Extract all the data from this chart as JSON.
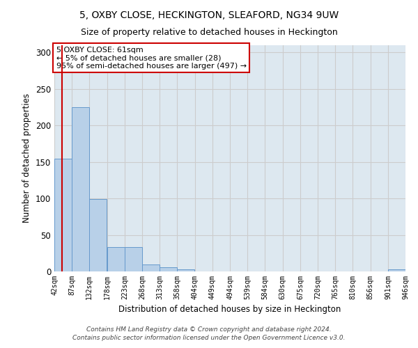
{
  "title_line1": "5, OXBY CLOSE, HECKINGTON, SLEAFORD, NG34 9UW",
  "title_line2": "Size of property relative to detached houses in Heckington",
  "xlabel": "Distribution of detached houses by size in Heckington",
  "ylabel": "Number of detached properties",
  "bin_edges": [
    42,
    87,
    132,
    178,
    223,
    268,
    313,
    358,
    404,
    449,
    494,
    539,
    584,
    630,
    675,
    720,
    765,
    810,
    856,
    901,
    946
  ],
  "bar_heights": [
    155,
    225,
    99,
    33,
    33,
    10,
    6,
    3,
    0,
    0,
    0,
    0,
    0,
    0,
    0,
    0,
    0,
    0,
    0,
    3
  ],
  "bar_color": "#b8d0e8",
  "bar_edge_color": "#6699cc",
  "vline_x": 61,
  "vline_color": "#cc0000",
  "grid_color": "#cccccc",
  "background_color": "#dde8f0",
  "annotation_text": "5 OXBY CLOSE: 61sqm\n← 5% of detached houses are smaller (28)\n95% of semi-detached houses are larger (497) →",
  "annotation_box_color": "#ffffff",
  "annotation_box_edgecolor": "#cc0000",
  "footer_line1": "Contains HM Land Registry data © Crown copyright and database right 2024.",
  "footer_line2": "Contains public sector information licensed under the Open Government Licence v3.0.",
  "ylim": [
    0,
    310
  ],
  "yticks": [
    0,
    50,
    100,
    150,
    200,
    250,
    300
  ]
}
